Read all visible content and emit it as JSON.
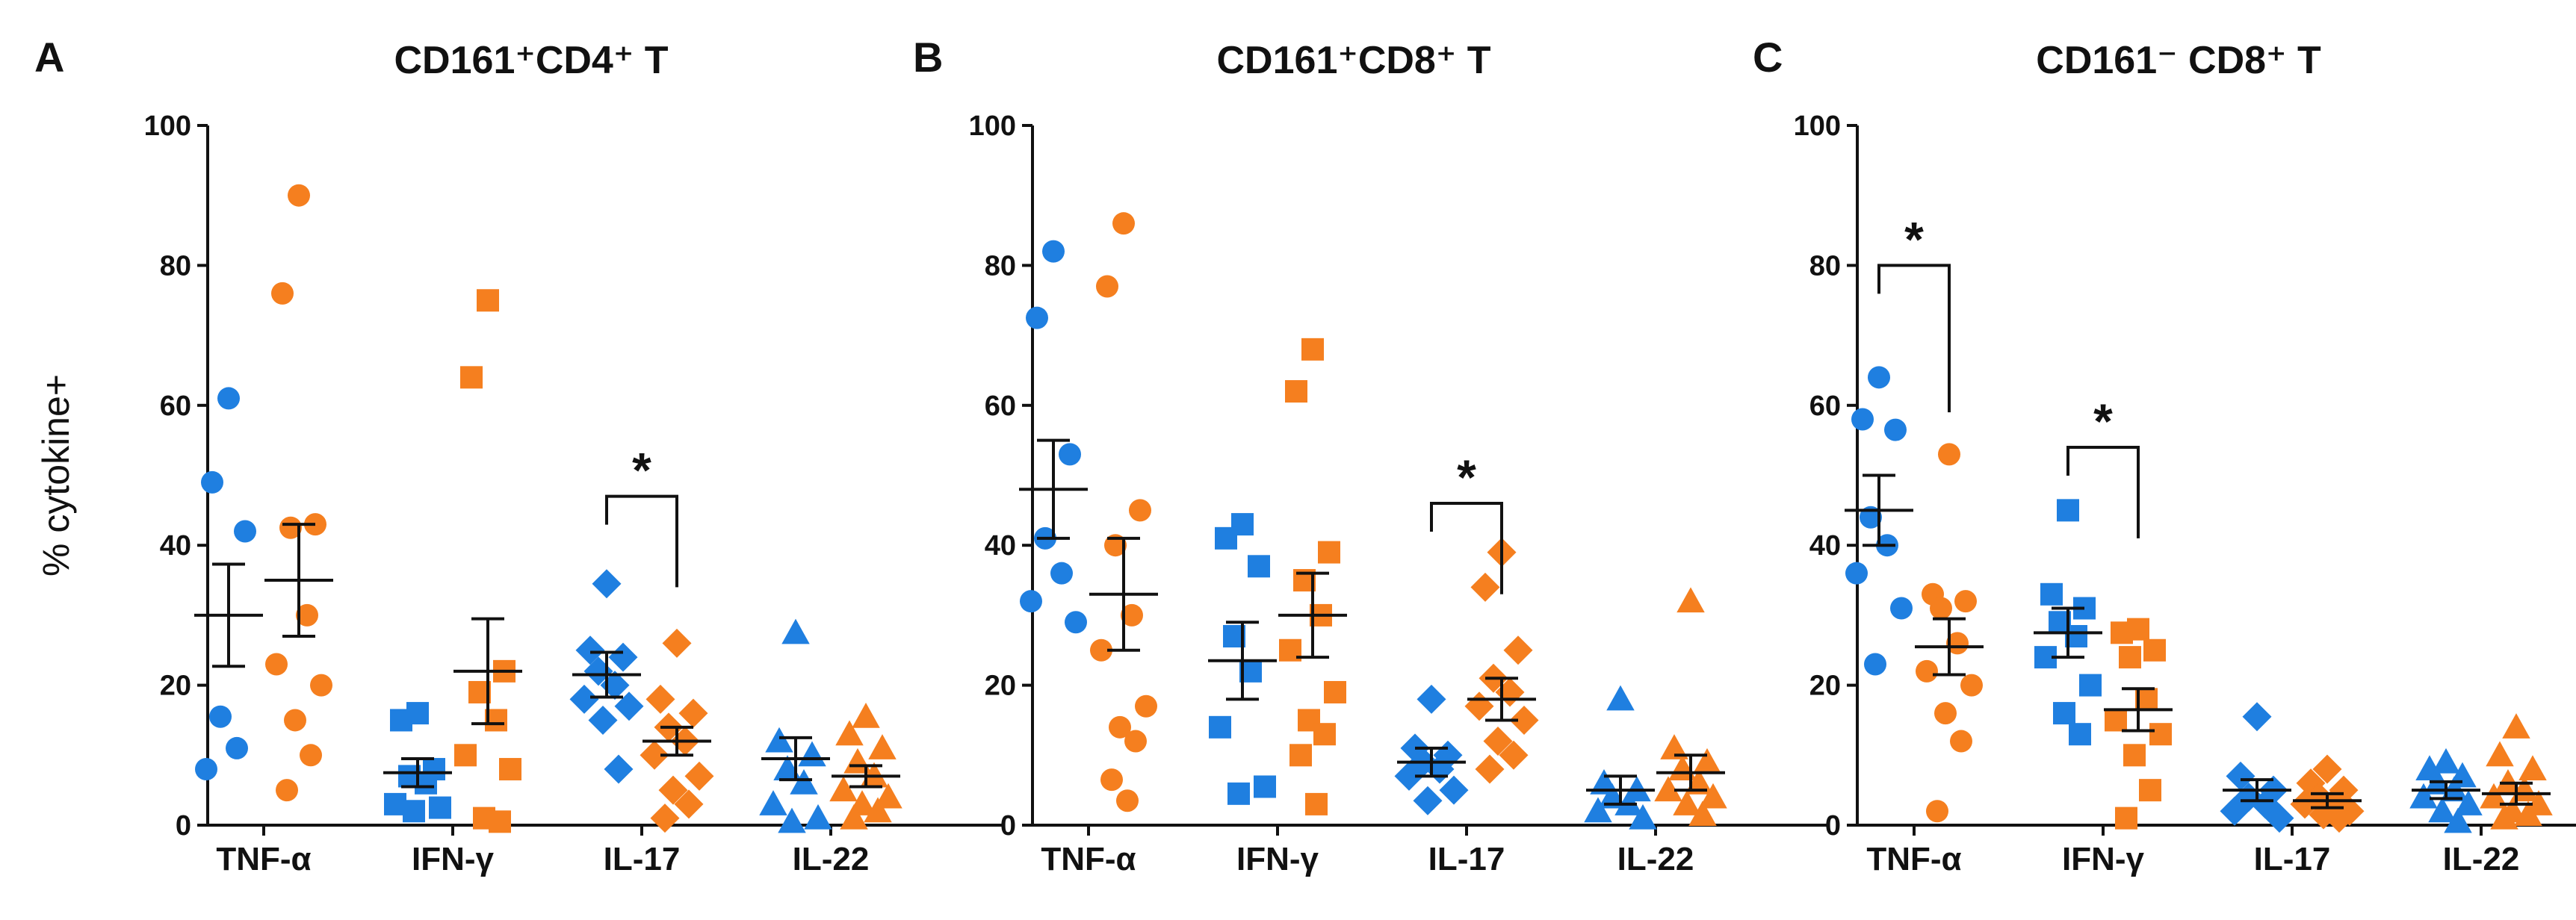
{
  "colors": {
    "group1": "#1f7fe0",
    "group2": "#f57f1f",
    "axis": "#111111",
    "ink": "#111111"
  },
  "chart_data": [
    {
      "type": "scatter",
      "panel_label": "A",
      "title": "CD161⁺CD4⁺ T",
      "ylabel": "% cytokine+",
      "ylim": [
        0,
        100
      ],
      "yticks": [
        0,
        20,
        40,
        60,
        80,
        100
      ],
      "categories": [
        "TNF-α",
        "IFN-γ",
        "IL-17",
        "IL-22"
      ],
      "groups": [
        {
          "name": "TNF-α",
          "marker": "circle",
          "series": [
            {
              "color": "group1",
              "mean": 30,
              "sem": 7.3,
              "points": [
                61,
                49,
                42,
                15.5,
                11,
                8
              ]
            },
            {
              "color": "group2",
              "mean": 35,
              "sem": 8,
              "points": [
                90,
                76,
                43,
                42.5,
                30,
                23,
                20,
                15,
                10,
                5
              ]
            }
          ]
        },
        {
          "name": "IFN-γ",
          "marker": "square",
          "series": [
            {
              "color": "group1",
              "mean": 7.5,
              "sem": 2,
              "points": [
                16,
                15,
                8,
                7,
                6,
                3,
                2.5,
                2
              ]
            },
            {
              "color": "group2",
              "mean": 22,
              "sem": 7.5,
              "points": [
                75,
                64,
                22,
                19,
                15,
                10,
                8,
                1,
                0.5
              ]
            }
          ]
        },
        {
          "name": "IL-17",
          "marker": "diamond",
          "series": [
            {
              "color": "group1",
              "mean": 21.5,
              "sem": 3.2,
              "points": [
                34.5,
                25,
                24,
                22,
                20,
                18,
                17,
                15,
                8
              ]
            },
            {
              "color": "group2",
              "mean": 12,
              "sem": 2,
              "points": [
                26,
                18,
                16,
                14,
                12,
                10,
                7,
                5,
                3,
                1
              ]
            }
          ]
        },
        {
          "name": "IL-22",
          "marker": "triangle",
          "series": [
            {
              "color": "group1",
              "mean": 9.5,
              "sem": 3,
              "points": [
                27.5,
                12,
                10,
                8,
                6,
                3,
                1,
                0.5
              ]
            },
            {
              "color": "group2",
              "mean": 7,
              "sem": 1.5,
              "points": [
                15.5,
                13,
                11,
                9,
                7,
                5,
                4,
                3,
                2,
                1
              ]
            }
          ]
        }
      ],
      "significance": [
        {
          "category": "IL-17",
          "label": "*",
          "y": 47
        }
      ]
    },
    {
      "type": "scatter",
      "panel_label": "B",
      "title": "CD161⁺CD8⁺ T",
      "ylim": [
        0,
        100
      ],
      "yticks": [
        0,
        20,
        40,
        60,
        80,
        100
      ],
      "categories": [
        "TNF-α",
        "IFN-γ",
        "IL-17",
        "IL-22"
      ],
      "groups": [
        {
          "name": "TNF-α",
          "marker": "circle",
          "series": [
            {
              "color": "group1",
              "mean": 48,
              "sem": 7,
              "points": [
                82,
                72.5,
                53,
                41,
                36,
                32,
                29
              ]
            },
            {
              "color": "group2",
              "mean": 33,
              "sem": 8,
              "points": [
                86,
                77,
                45,
                40,
                30,
                25,
                17,
                14,
                12,
                6.5,
                3.5
              ]
            }
          ]
        },
        {
          "name": "IFN-γ",
          "marker": "square",
          "series": [
            {
              "color": "group1",
              "mean": 23.5,
              "sem": 5.5,
              "points": [
                43,
                41,
                37,
                27,
                22,
                14,
                5.5,
                4.5
              ]
            },
            {
              "color": "group2",
              "mean": 30,
              "sem": 6,
              "points": [
                68,
                62,
                39,
                35,
                30,
                25,
                19,
                15,
                13,
                10,
                3
              ]
            }
          ]
        },
        {
          "name": "IL-17",
          "marker": "diamond",
          "series": [
            {
              "color": "group1",
              "mean": 9,
              "sem": 2,
              "points": [
                18,
                11,
                10,
                9,
                8,
                7,
                5,
                3.5
              ]
            },
            {
              "color": "group2",
              "mean": 18,
              "sem": 3,
              "points": [
                39,
                34,
                25,
                21,
                19,
                17,
                15,
                12,
                10,
                8
              ]
            }
          ]
        },
        {
          "name": "IL-22",
          "marker": "triangle",
          "series": [
            {
              "color": "group1",
              "mean": 5,
              "sem": 2,
              "points": [
                18,
                6,
                5,
                4,
                3,
                2,
                1
              ]
            },
            {
              "color": "group2",
              "mean": 7.5,
              "sem": 2.5,
              "points": [
                32,
                11,
                9,
                8,
                6,
                5,
                4,
                3,
                1.5
              ]
            }
          ]
        }
      ],
      "significance": [
        {
          "category": "IL-17",
          "label": "*",
          "y": 46
        }
      ]
    },
    {
      "type": "scatter",
      "panel_label": "C",
      "title": "CD161⁻ CD8⁺ T",
      "ylim": [
        0,
        100
      ],
      "yticks": [
        0,
        20,
        40,
        60,
        80,
        100
      ],
      "categories": [
        "TNF-α",
        "IFN-γ",
        "IL-17",
        "IL-22"
      ],
      "groups": [
        {
          "name": "TNF-α",
          "marker": "circle",
          "series": [
            {
              "color": "group1",
              "mean": 45,
              "sem": 5,
              "points": [
                64,
                58,
                56.5,
                44,
                40,
                36,
                31,
                23
              ]
            },
            {
              "color": "group2",
              "mean": 25.5,
              "sem": 4,
              "points": [
                53,
                33,
                32,
                31,
                26,
                22,
                20,
                16,
                12,
                2
              ]
            }
          ]
        },
        {
          "name": "IFN-γ",
          "marker": "square",
          "series": [
            {
              "color": "group1",
              "mean": 27.5,
              "sem": 3.5,
              "points": [
                45,
                33,
                31,
                29,
                27,
                24,
                20,
                16,
                13
              ]
            },
            {
              "color": "group2",
              "mean": 16.5,
              "sem": 3,
              "points": [
                28,
                27.5,
                25,
                24,
                18,
                15,
                13,
                10,
                5,
                1
              ]
            }
          ]
        },
        {
          "name": "IL-17",
          "marker": "diamond",
          "series": [
            {
              "color": "group1",
              "mean": 5,
              "sem": 1.5,
              "points": [
                15.5,
                7,
                5,
                4,
                3,
                2,
                1
              ]
            },
            {
              "color": "group2",
              "mean": 3.5,
              "sem": 1,
              "points": [
                8,
                6,
                5,
                4,
                3.5,
                3,
                2,
                1.5,
                1
              ]
            }
          ]
        },
        {
          "name": "IL-22",
          "marker": "triangle",
          "series": [
            {
              "color": "group1",
              "mean": 5,
              "sem": 1.2,
              "points": [
                9,
                8,
                7,
                6,
                5,
                4,
                3,
                2,
                0.5
              ]
            },
            {
              "color": "group2",
              "mean": 4.5,
              "sem": 1.5,
              "points": [
                14,
                10,
                8,
                6,
                5,
                4,
                3,
                2,
                1.5,
                1
              ]
            }
          ]
        }
      ],
      "significance": [
        {
          "category": "TNF-α",
          "label": "*",
          "y": 80
        },
        {
          "category": "IFN-γ",
          "label": "*",
          "y": 54
        }
      ]
    }
  ]
}
